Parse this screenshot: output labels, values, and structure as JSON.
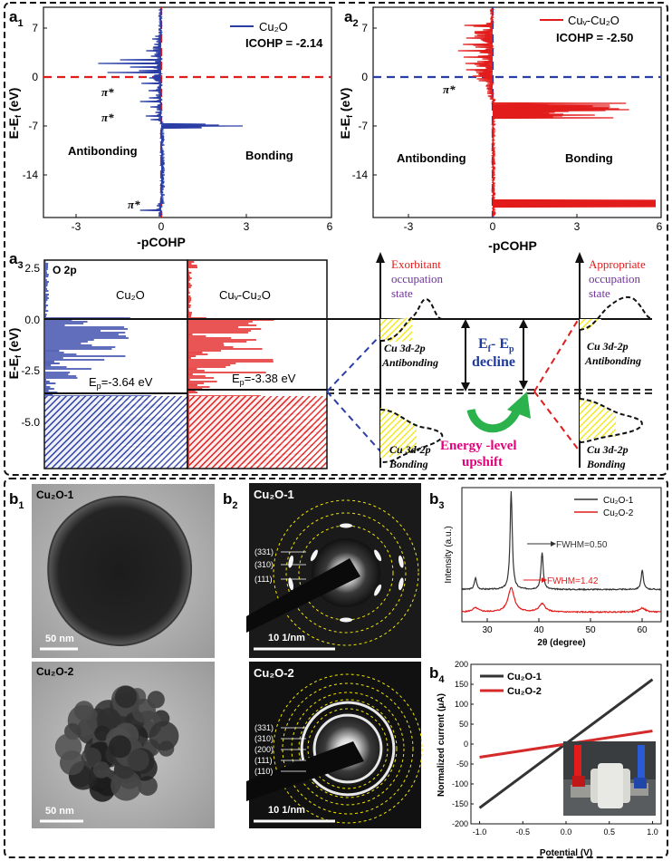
{
  "panels": {
    "a1": {
      "label": "a",
      "sub": "1",
      "legend": "Cu₂O",
      "icohp": "ICOHP = -2.14",
      "ylabel": "E-E",
      "ylabel_sub": "f",
      "ylabel_unit": " (eV)",
      "xlabel": "-pCOHP",
      "yticks": [
        "7",
        "0",
        "-7",
        "-14"
      ],
      "xticks": [
        "-3",
        "0",
        "3",
        "6"
      ],
      "antibonding": "Antibonding",
      "bonding": "Bonding",
      "pi_star": "π*"
    },
    "a2": {
      "label": "a",
      "sub": "2",
      "legend": "Cuᵥ-Cu₂O",
      "icohp": "ICOHP = -2.50",
      "ylabel": "E-E",
      "ylabel_sub": "f",
      "ylabel_unit": " (eV)",
      "xlabel": "-pCOHP",
      "yticks": [
        "7",
        "0",
        "-7",
        "-14"
      ],
      "xticks": [
        "-3",
        "0",
        "3",
        "6"
      ],
      "antibonding": "Antibonding",
      "bonding": "Bonding",
      "pi_star": "π*"
    },
    "a3": {
      "label": "a",
      "sub": "3",
      "ylabel": "E-E",
      "ylabel_sub": "f",
      "ylabel_unit": " (eV)",
      "yticks": [
        "2.5",
        "0.0",
        "-2.5",
        "-5.0"
      ],
      "o2p": "O 2p",
      "cu2o": "Cu₂O",
      "cuv_cu2o": "Cuᵥ-Cu₂O",
      "ep_left": "E",
      "ep_left_val": "=-3.64 eV",
      "ep_right": "E",
      "ep_right_val": "=-3.38 eV",
      "ep_sub": "p",
      "exorbitant": [
        "Exorbitant",
        "occupation",
        "state"
      ],
      "appropriate": [
        "Appropriate",
        "occupation",
        "state"
      ],
      "cu3d2p": "Cu 3d-2p",
      "antibonding": "Antibonding",
      "bonding": "Bonding",
      "decline_top": "E",
      "decline_top_sub1": "f",
      "decline_mid": "- E",
      "decline_top_sub2": "p",
      "decline": "decline",
      "energy_level": "Energy -level",
      "upshift": "upshift"
    },
    "b1": {
      "label": "b",
      "sub": "1",
      "top": "Cu₂O-1",
      "bottom": "Cu₂O-2",
      "scale": "50 nm"
    },
    "b2": {
      "label": "b",
      "sub": "2",
      "top": "Cu₂O-1",
      "bottom": "Cu₂O-2",
      "scale": "10   1/nm",
      "rings_top": [
        "(331)",
        "(310)",
        "(111)"
      ],
      "rings_bottom": [
        "(331)",
        "(310)",
        "(200)",
        "(111)",
        "(110)"
      ]
    },
    "b3": {
      "label": "b",
      "sub": "3",
      "ylabel": "Intensity (a.u.)",
      "xlabel": "2θ (degree)",
      "xticks": [
        "30",
        "40",
        "50",
        "60"
      ],
      "legend": [
        "Cu₂O-1",
        "Cu₂O-2"
      ],
      "fwhm1": "FWHM=0.50",
      "fwhm2": "FWHM=1.42"
    },
    "b4": {
      "label": "b",
      "sub": "4",
      "ylabel": "Normalized current (μA)",
      "xlabel": "Potential (V)",
      "xticks": [
        "-1.0",
        "-0.5",
        "0.0",
        "0.5",
        "1.0"
      ],
      "yticks": [
        "200",
        "150",
        "100",
        "50",
        "0",
        "-50",
        "-100",
        "-150",
        "-200"
      ],
      "legend": [
        "Cu₂O-1",
        "Cu₂O-2"
      ]
    }
  },
  "colors": {
    "blue": "#2b3ea6",
    "red": "#e21b1b",
    "black": "#111111",
    "yellow": "#f2e600",
    "green": "#2bb24c",
    "magenta": "#e6007e",
    "purple": "#7030a0",
    "navy": "#1f3b9b"
  },
  "chart_data": [
    {
      "type": "line",
      "title": "b3 XRD",
      "xlabel": "2θ (degree)",
      "ylabel": "Intensity (a.u.)",
      "xlim": [
        27,
        65
      ],
      "series": [
        {
          "name": "Cu₂O-1",
          "peaks": [
            [
              29.6,
              0.12
            ],
            [
              36.4,
              1.0
            ],
            [
              42.3,
              0.38
            ],
            [
              61.4,
              0.2
            ]
          ],
          "fwhm": 0.5
        },
        {
          "name": "Cu₂O-2",
          "peaks": [
            [
              29.6,
              0.05
            ],
            [
              36.4,
              0.3
            ],
            [
              42.3,
              0.1
            ],
            [
              61.4,
              0.05
            ]
          ],
          "fwhm": 1.42
        }
      ]
    },
    {
      "type": "line",
      "title": "b4 I-V",
      "xlabel": "Potential (V)",
      "ylabel": "Normalized current (μA)",
      "xlim": [
        -1.1,
        1.1
      ],
      "ylim": [
        -200,
        200
      ],
      "series": [
        {
          "name": "Cu₂O-1",
          "x": [
            -1.0,
            1.0
          ],
          "y": [
            -160,
            162
          ]
        },
        {
          "name": "Cu₂O-2",
          "x": [
            -1.0,
            1.0
          ],
          "y": [
            -33,
            33
          ]
        }
      ]
    }
  ]
}
